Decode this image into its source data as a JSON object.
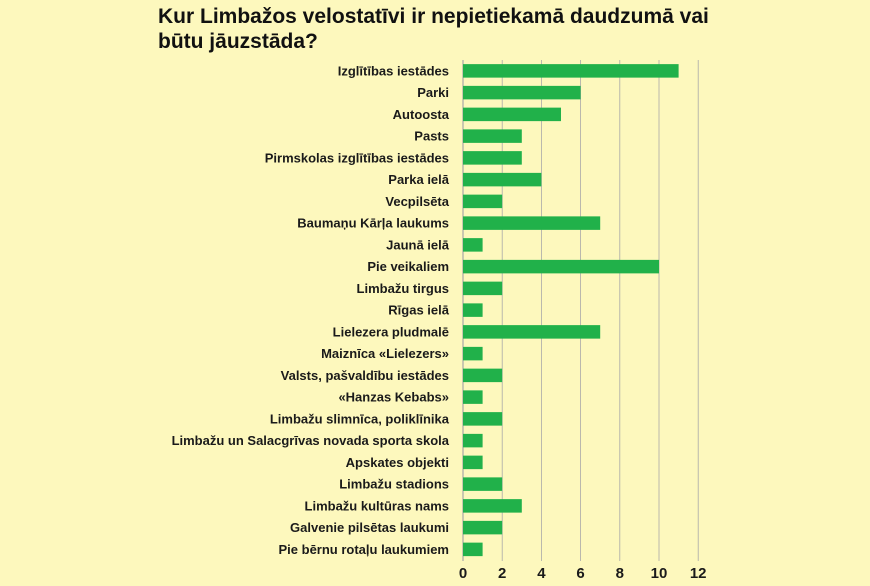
{
  "title": "Kur Limbažos velostatīvi ir nepietiekamā daudzumā vai būtu jāuzstāda?",
  "colors": {
    "bar": "#21b14a",
    "grid": "#a9a9a9",
    "background": "#fdf8bd"
  },
  "chart_data": {
    "type": "bar",
    "orientation": "horizontal",
    "title": "Kur Limbažos velostatīvi ir nepietiekamā daudzumā vai būtu jāuzstāda?",
    "xlabel": "",
    "ylabel": "",
    "xlim": [
      0,
      12
    ],
    "xticks": [
      0,
      2,
      4,
      6,
      8,
      10,
      12
    ],
    "grid": "vertical",
    "categories": [
      "Izglītības iestādes",
      "Parki",
      "Autoosta",
      "Pasts",
      "Pirmskolas izglītības iestādes",
      "Parka ielā",
      "Vecpilsēta",
      "Baumaņu Kārļa laukums",
      "Jaunā ielā",
      "Pie veikaliem",
      "Limbažu tirgus",
      "Rīgas ielā",
      "Lielezera pludmalē",
      "Maiznīca «Lielezers»",
      "Valsts, pašvaldību iestādes",
      "«Hanzas Kebabs»",
      "Limbažu slimnīca, poliklīnika",
      "Limbažu un Salacgrīvas novada sporta skola",
      "Apskates objekti",
      "Limbažu stadions",
      "Limbažu kultūras nams",
      "Galvenie pilsētas laukumi",
      "Pie bērnu rotaļu laukumiem"
    ],
    "values": [
      11,
      6,
      5,
      3,
      3,
      4,
      2,
      7,
      1,
      10,
      2,
      1,
      7,
      1,
      2,
      1,
      2,
      1,
      1,
      2,
      3,
      2,
      1
    ]
  }
}
